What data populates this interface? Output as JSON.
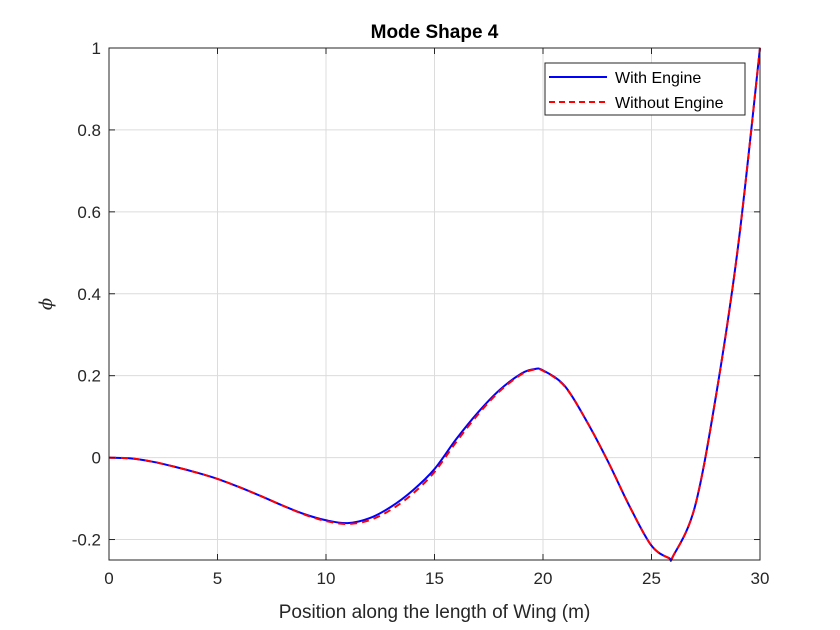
{
  "chart_data": {
    "type": "line",
    "title": "Mode Shape 4",
    "xlabel": "Position along the length of Wing (m)",
    "ylabel": "ϕ",
    "xlim": [
      0,
      30
    ],
    "ylim": [
      -0.25,
      1
    ],
    "xticks": [
      0,
      5,
      10,
      15,
      20,
      25,
      30
    ],
    "xtick_labels": [
      "0",
      "5",
      "10",
      "15",
      "20",
      "25",
      "30"
    ],
    "yticks": [
      -0.2,
      0,
      0.2,
      0.4,
      0.6,
      0.8,
      1
    ],
    "ytick_labels": [
      "-0.2",
      "0",
      "0.2",
      "0.4",
      "0.6",
      "0.8",
      "1"
    ],
    "grid": true,
    "legend_position": "top-right",
    "x": [
      0,
      1,
      2,
      3,
      4,
      5,
      6,
      7,
      8,
      9,
      10,
      11,
      12,
      13,
      14,
      15,
      16,
      17,
      18,
      19,
      19.6,
      20,
      21,
      22,
      23,
      24,
      25,
      25.8,
      26,
      27,
      28,
      29,
      30
    ],
    "series": [
      {
        "name": "With Engine",
        "color": "#0000ff",
        "style": "solid",
        "values": [
          0,
          -0.002,
          -0.01,
          -0.022,
          -0.036,
          -0.052,
          -0.072,
          -0.094,
          -0.117,
          -0.138,
          -0.153,
          -0.16,
          -0.148,
          -0.12,
          -0.08,
          -0.028,
          0.045,
          0.11,
          0.165,
          0.205,
          0.216,
          0.213,
          0.175,
          0.09,
          -0.01,
          -0.12,
          -0.215,
          -0.245,
          -0.24,
          -0.12,
          0.16,
          0.52,
          1.0
        ]
      },
      {
        "name": "Without Engine",
        "color": "#ff0000",
        "style": "dashed",
        "values": [
          0,
          -0.002,
          -0.01,
          -0.022,
          -0.036,
          -0.052,
          -0.072,
          -0.094,
          -0.117,
          -0.139,
          -0.155,
          -0.162,
          -0.153,
          -0.127,
          -0.088,
          -0.035,
          0.038,
          0.105,
          0.162,
          0.203,
          0.215,
          0.212,
          0.174,
          0.09,
          -0.01,
          -0.12,
          -0.215,
          -0.245,
          -0.24,
          -0.12,
          0.16,
          0.52,
          1.0
        ]
      }
    ]
  }
}
